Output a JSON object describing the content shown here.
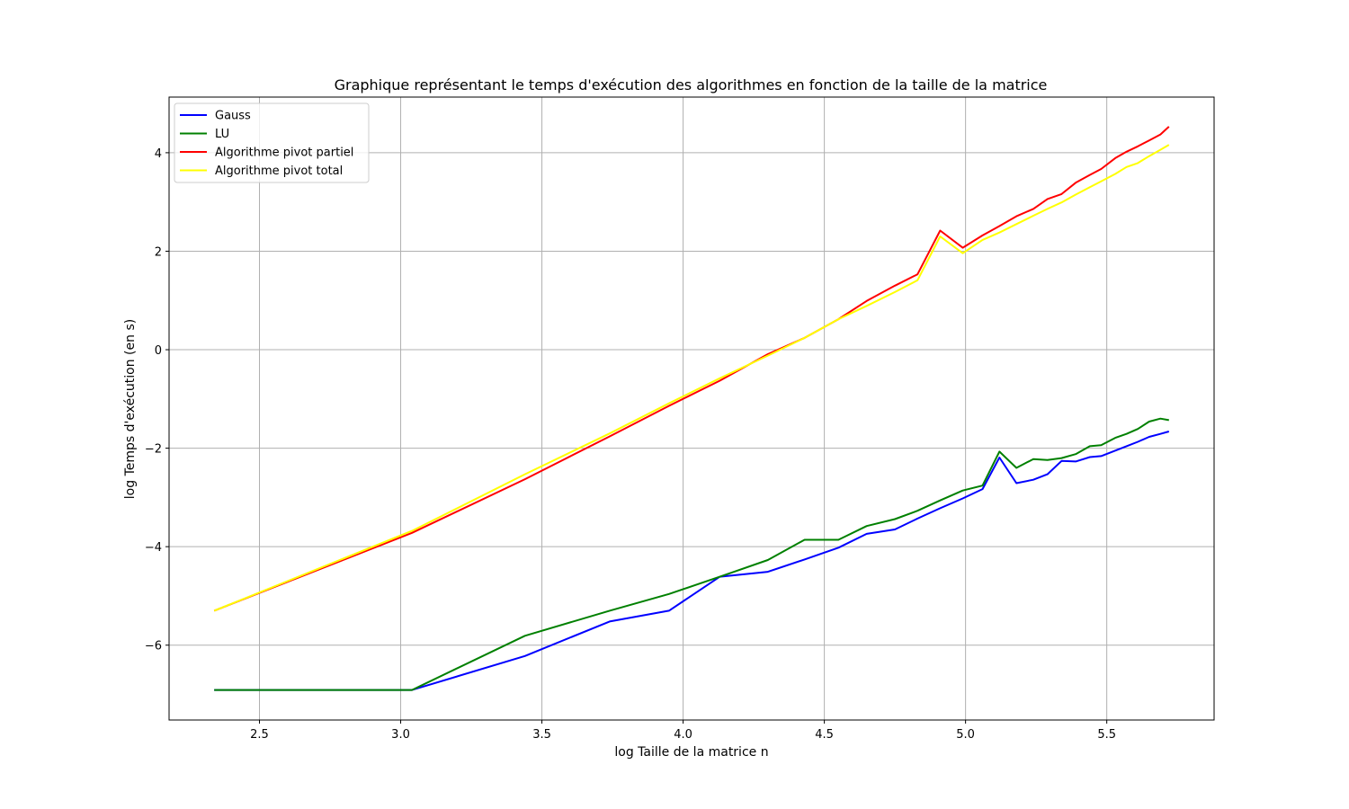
{
  "chart_data": {
    "type": "line",
    "title": "Graphique représentant le temps d'exécution des algorithmes en fonction de la taille de la matrice",
    "xlabel": "log Taille de la matrice n",
    "ylabel": "log Temps d'exécution (en s)",
    "xlim": [
      2.18,
      5.88
    ],
    "ylim": [
      -7.52,
      5.13
    ],
    "xticks": [
      2.5,
      3.0,
      3.5,
      4.0,
      4.5,
      5.0,
      5.5
    ],
    "xtick_labels": [
      "2.5",
      "3.0",
      "3.5",
      "4.0",
      "4.5",
      "5.0",
      "5.5"
    ],
    "yticks": [
      -6,
      -4,
      -2,
      0,
      2,
      4
    ],
    "ytick_labels": [
      "−6",
      "−4",
      "−2",
      "0",
      "2",
      "4"
    ],
    "grid": true,
    "legend_position": "top-left",
    "series": [
      {
        "name": "Gauss",
        "color": "#0000ff",
        "x": [
          2.34,
          3.04,
          3.44,
          3.74,
          3.95,
          4.13,
          4.3,
          4.43,
          4.55,
          4.65,
          4.75,
          4.83,
          4.91,
          4.99,
          5.06,
          5.12,
          5.18,
          5.24,
          5.29,
          5.34,
          5.39,
          5.44,
          5.48,
          5.53,
          5.57,
          5.61,
          5.65,
          5.69,
          5.72
        ],
        "y": [
          -6.91,
          -6.91,
          -6.22,
          -5.52,
          -5.3,
          -4.61,
          -4.51,
          -4.26,
          -4.02,
          -3.74,
          -3.65,
          -3.43,
          -3.22,
          -3.02,
          -2.83,
          -2.19,
          -2.71,
          -2.64,
          -2.53,
          -2.26,
          -2.27,
          -2.18,
          -2.16,
          -2.05,
          -1.96,
          -1.87,
          -1.77,
          -1.71,
          -1.66
        ]
      },
      {
        "name": "LU",
        "color": "#008000",
        "x": [
          2.34,
          3.04,
          3.44,
          3.74,
          3.95,
          4.13,
          4.3,
          4.43,
          4.55,
          4.65,
          4.75,
          4.83,
          4.91,
          4.99,
          5.06,
          5.12,
          5.18,
          5.24,
          5.29,
          5.34,
          5.39,
          5.44,
          5.48,
          5.53,
          5.57,
          5.61,
          5.65,
          5.69,
          5.72
        ],
        "y": [
          -6.91,
          -6.91,
          -5.81,
          -5.3,
          -4.96,
          -4.61,
          -4.27,
          -3.86,
          -3.86,
          -3.58,
          -3.44,
          -3.27,
          -3.06,
          -2.86,
          -2.76,
          -2.07,
          -2.4,
          -2.22,
          -2.24,
          -2.2,
          -2.12,
          -1.96,
          -1.94,
          -1.79,
          -1.71,
          -1.61,
          -1.46,
          -1.4,
          -1.43
        ]
      },
      {
        "name": "Algorithme pivot partiel",
        "color": "#ff0000",
        "x": [
          2.34,
          3.04,
          3.44,
          3.74,
          3.95,
          4.13,
          4.3,
          4.43,
          4.55,
          4.65,
          4.75,
          4.83,
          4.91,
          4.99,
          5.06,
          5.12,
          5.18,
          5.24,
          5.29,
          5.34,
          5.39,
          5.44,
          5.48,
          5.53,
          5.57,
          5.61,
          5.65,
          5.69,
          5.72
        ],
        "y": [
          -5.3,
          -3.72,
          -2.63,
          -1.76,
          -1.14,
          -0.63,
          -0.09,
          0.24,
          0.62,
          0.99,
          1.3,
          1.53,
          2.42,
          2.07,
          2.32,
          2.51,
          2.71,
          2.86,
          3.06,
          3.16,
          3.39,
          3.55,
          3.67,
          3.89,
          4.02,
          4.13,
          4.25,
          4.37,
          4.53
        ]
      },
      {
        "name": "Algorithme pivot total",
        "color": "#ffff00",
        "x": [
          2.34,
          3.04,
          3.44,
          3.74,
          3.95,
          4.13,
          4.3,
          4.43,
          4.55,
          4.65,
          4.75,
          4.83,
          4.91,
          4.99,
          5.06,
          5.12,
          5.18,
          5.24,
          5.29,
          5.34,
          5.39,
          5.44,
          5.48,
          5.53,
          5.57,
          5.61,
          5.65,
          5.69,
          5.72
        ],
        "y": [
          -5.3,
          -3.68,
          -2.53,
          -1.7,
          -1.09,
          -0.58,
          -0.12,
          0.24,
          0.62,
          0.89,
          1.17,
          1.41,
          2.3,
          1.96,
          2.23,
          2.38,
          2.55,
          2.72,
          2.86,
          2.99,
          3.15,
          3.3,
          3.42,
          3.57,
          3.71,
          3.79,
          3.93,
          4.06,
          4.16
        ]
      }
    ]
  }
}
